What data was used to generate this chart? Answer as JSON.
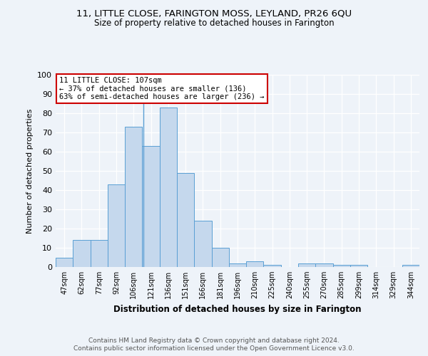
{
  "title1": "11, LITTLE CLOSE, FARINGTON MOSS, LEYLAND, PR26 6QU",
  "title2": "Size of property relative to detached houses in Farington",
  "xlabel": "Distribution of detached houses by size in Farington",
  "ylabel": "Number of detached properties",
  "bar_labels": [
    "47sqm",
    "62sqm",
    "77sqm",
    "92sqm",
    "106sqm",
    "121sqm",
    "136sqm",
    "151sqm",
    "166sqm",
    "181sqm",
    "196sqm",
    "210sqm",
    "225sqm",
    "240sqm",
    "255sqm",
    "270sqm",
    "285sqm",
    "299sqm",
    "314sqm",
    "329sqm",
    "344sqm"
  ],
  "bar_values": [
    5,
    14,
    14,
    43,
    73,
    63,
    83,
    49,
    24,
    10,
    2,
    3,
    1,
    0,
    2,
    2,
    1,
    1,
    0,
    0,
    1
  ],
  "bar_color": "#c5d8ed",
  "bar_edge_color": "#5a9fd4",
  "annotation_line1": "11 LITTLE CLOSE: 107sqm",
  "annotation_line2": "← 37% of detached houses are smaller (136)",
  "annotation_line3": "63% of semi-detached houses are larger (236) →",
  "annotation_box_color": "#ffffff",
  "annotation_box_edge": "#cc0000",
  "property_line_x": 4.55,
  "ylim": [
    0,
    100
  ],
  "yticks": [
    0,
    10,
    20,
    30,
    40,
    50,
    60,
    70,
    80,
    90,
    100
  ],
  "footer1": "Contains HM Land Registry data © Crown copyright and database right 2024.",
  "footer2": "Contains public sector information licensed under the Open Government Licence v3.0.",
  "bg_color": "#eef3f9",
  "plot_bg_color": "#eef3f9"
}
